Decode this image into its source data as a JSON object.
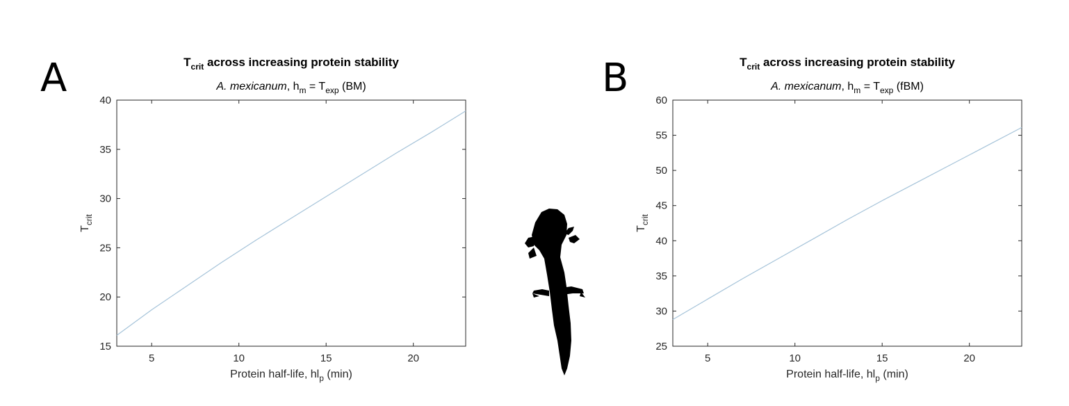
{
  "panel_letters": [
    "A",
    "B"
  ],
  "colors": {
    "series": "#a5c3d9",
    "axis": "#262626"
  },
  "axolotl_icon": "axolotl-silhouette-icon",
  "chart_data": [
    {
      "type": "line",
      "title": {
        "prefix": "T",
        "sub": "crit",
        "rest": " across increasing protein stability"
      },
      "subtitle": {
        "species": "A. mexicanum",
        "h": "h",
        "h_sub": "m",
        "eq": " = T",
        "t_sub": "exp",
        "model": " (BM)"
      },
      "xlabel": {
        "text": "Protein half-life, hl",
        "sub": "p",
        "unit": " (min)"
      },
      "ylabel": {
        "text": "T",
        "sub": "crit"
      },
      "xlim": [
        3,
        23
      ],
      "ylim": [
        15,
        40
      ],
      "xticks": [
        5,
        10,
        15,
        20
      ],
      "yticks": [
        15,
        20,
        25,
        30,
        35,
        40
      ],
      "grid": false,
      "series": [
        {
          "x": [
            3,
            5,
            7,
            9,
            11,
            13,
            15,
            17,
            19,
            21,
            23
          ],
          "y": [
            16.1,
            18.7,
            21.1,
            23.5,
            25.8,
            28.0,
            30.2,
            32.4,
            34.6,
            36.7,
            38.9
          ]
        }
      ]
    },
    {
      "type": "line",
      "title": {
        "prefix": "T",
        "sub": "crit",
        "rest": " across increasing protein stability"
      },
      "subtitle": {
        "species": "A. mexicanum",
        "h": "h",
        "h_sub": "m",
        "eq": " = T",
        "t_sub": "exp",
        "model": " (fBM)"
      },
      "xlabel": {
        "text": "Protein half-life, hl",
        "sub": "p",
        "unit": " (min)"
      },
      "ylabel": {
        "text": "T",
        "sub": "crit"
      },
      "xlim": [
        3,
        23
      ],
      "ylim": [
        25,
        60
      ],
      "xticks": [
        5,
        10,
        15,
        20
      ],
      "yticks": [
        25,
        30,
        35,
        40,
        45,
        50,
        55,
        60
      ],
      "grid": false,
      "series": [
        {
          "x": [
            3,
            5,
            7,
            9,
            11,
            13,
            15,
            17,
            19,
            21,
            23
          ],
          "y": [
            28.8,
            31.7,
            34.6,
            37.4,
            40.2,
            43.0,
            45.7,
            48.3,
            50.9,
            53.5,
            56.1
          ]
        }
      ]
    }
  ]
}
